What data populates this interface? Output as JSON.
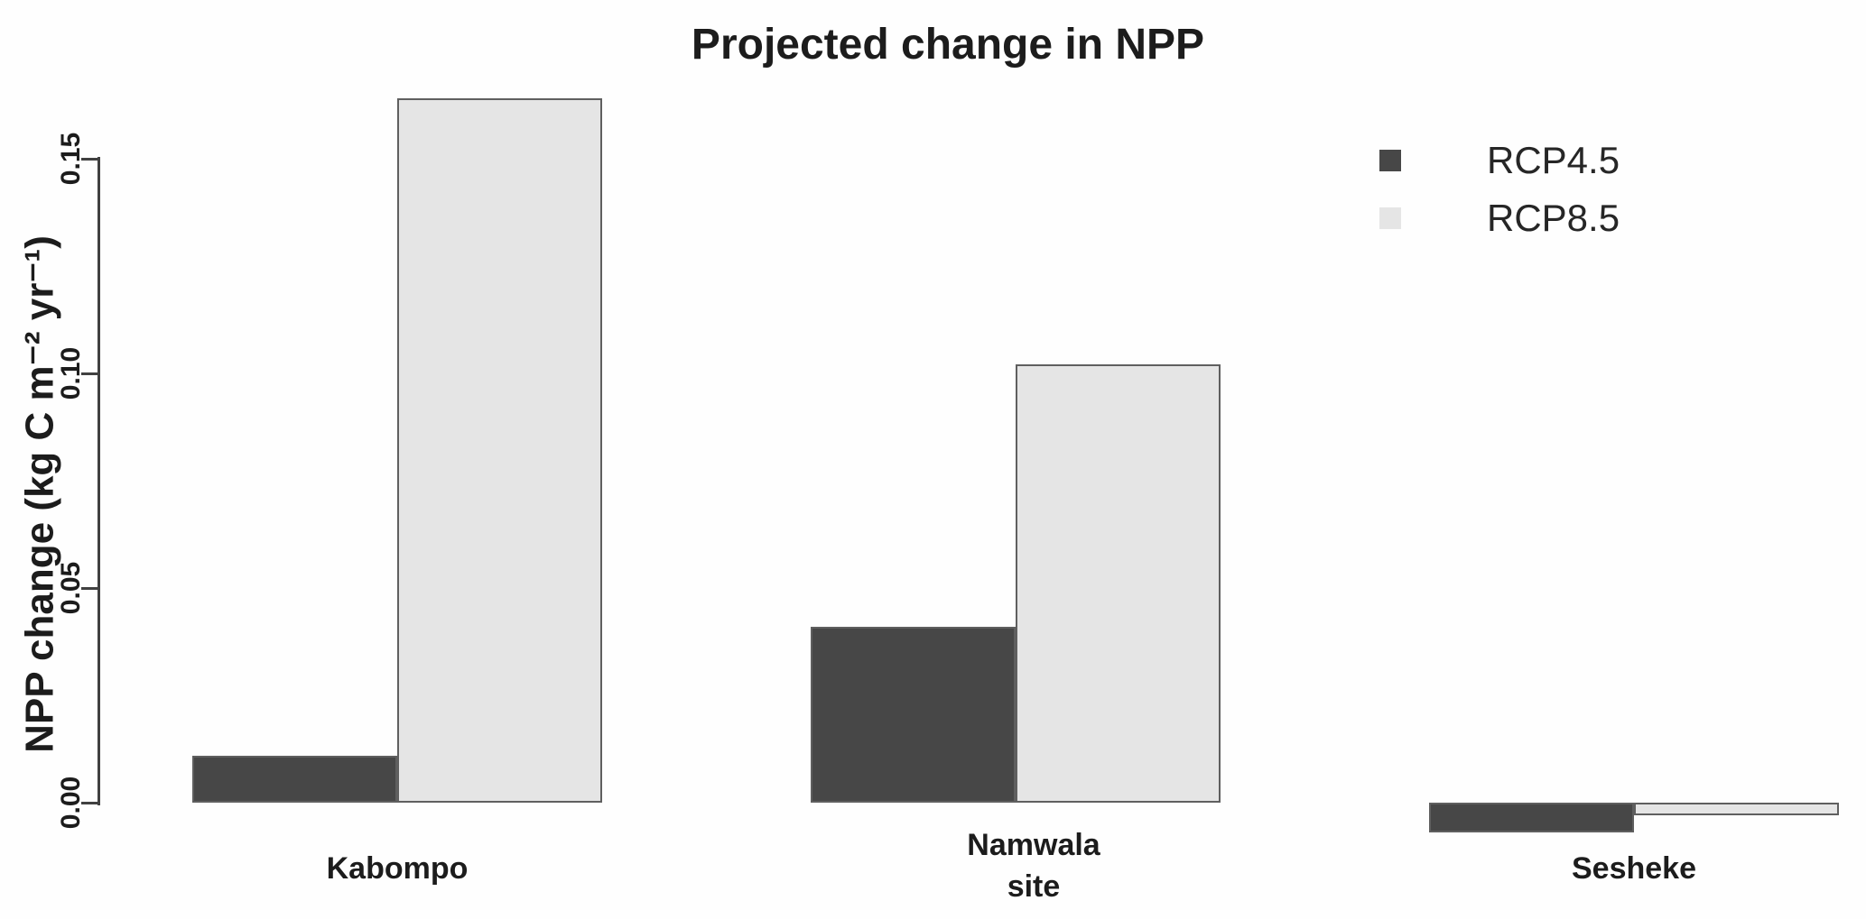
{
  "chart_data": {
    "type": "bar",
    "title": "Projected change in NPP",
    "categories": [
      "Kabompo",
      "Namwala",
      "Sesheke"
    ],
    "series": [
      {
        "name": "RCP4.5",
        "color": "#474747",
        "values": [
          0.011,
          0.041,
          -0.007
        ]
      },
      {
        "name": "RCP8.5",
        "color": "#e5e5e5",
        "values": [
          0.164,
          0.102,
          -0.003
        ]
      }
    ],
    "xlabel": "site",
    "ylabel": "NPP change (kg C m⁻² yr⁻¹)",
    "yticks": [
      0,
      0.05,
      0.1,
      0.15
    ],
    "ytick_labels": [
      "0.00",
      "0.05",
      "0.10",
      "0.15"
    ],
    "ylim": [
      -0.012,
      0.168
    ],
    "grid": false,
    "legend_position": "top-right",
    "legend_marker": "square",
    "colors": {
      "text": "#1c1c1c",
      "axis": "#404040",
      "bar_border": "#5f5f5f",
      "background": "#fefefe"
    }
  }
}
